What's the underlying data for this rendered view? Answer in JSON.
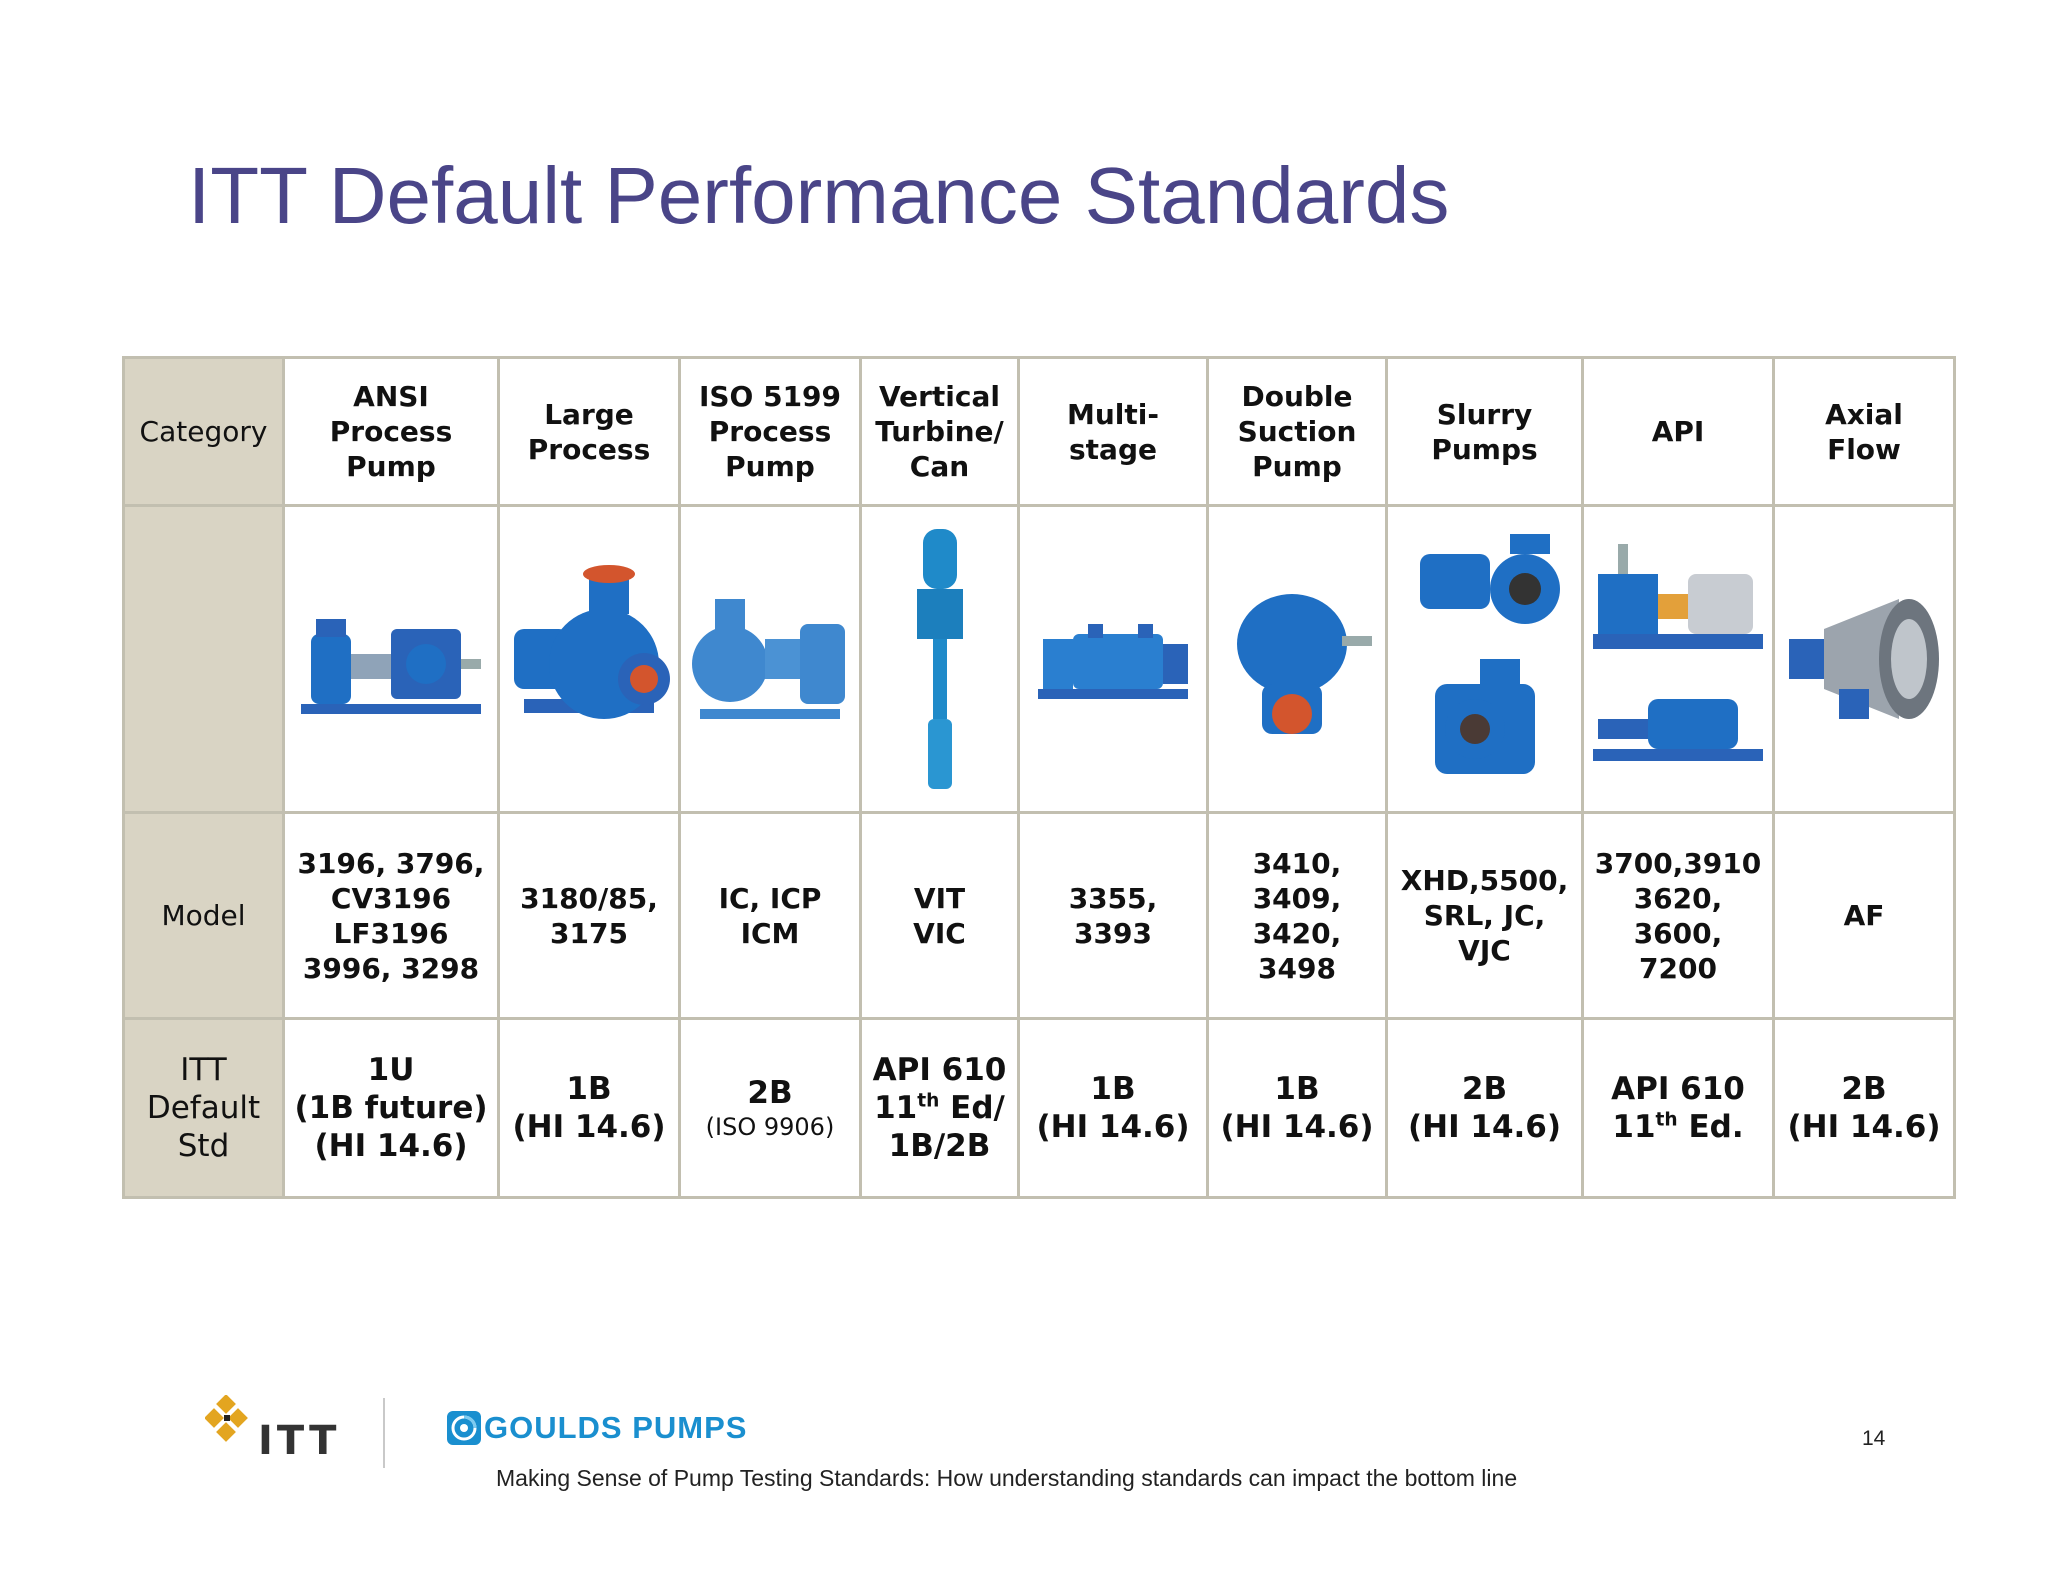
{
  "title": "ITT Default Performance Standards",
  "table": {
    "row_labels": {
      "category": "Category",
      "model": "Model",
      "std": [
        "ITT",
        "Default",
        "Std"
      ]
    },
    "columns": [
      {
        "header": [
          "ANSI Process",
          "Pump"
        ],
        "model": [
          "3196, 3796,",
          "CV3196",
          "LF3196",
          "3996, 3298"
        ],
        "std": [
          "1U",
          "(1B future)",
          "(HI 14.6)"
        ]
      },
      {
        "header": [
          "Large",
          "Process"
        ],
        "model": [
          "3180/85,",
          "3175"
        ],
        "std": [
          "1B",
          "(HI 14.6)"
        ]
      },
      {
        "header": [
          "ISO 5199",
          "Process",
          "Pump"
        ],
        "model": [
          "IC, ICP",
          "ICM"
        ],
        "std_main": "2B",
        "std_sub": "(ISO 9906)"
      },
      {
        "header": [
          "Vertical",
          "Turbine/",
          "Can"
        ],
        "model": [
          "VIT",
          "VIC"
        ],
        "std_api": {
          "l1": "API 610",
          "num": "11",
          "sup": "th",
          "suffix": " Ed/",
          "l3": "1B/2B"
        }
      },
      {
        "header": [
          "Multi-",
          "stage"
        ],
        "model": [
          "3355,",
          "3393"
        ],
        "std": [
          "1B",
          "(HI 14.6)"
        ]
      },
      {
        "header": [
          "Double",
          "Suction",
          "Pump"
        ],
        "model": [
          "3410,",
          "3409,",
          "3420,",
          "3498"
        ],
        "std": [
          "1B",
          "(HI 14.6)"
        ]
      },
      {
        "header": [
          "Slurry",
          "Pumps"
        ],
        "model": [
          "XHD,5500,",
          "SRL, JC,",
          "VJC"
        ],
        "std": [
          "2B",
          "(HI 14.6)"
        ]
      },
      {
        "header": [
          "API"
        ],
        "model": [
          "3700,3910",
          "3620,",
          "3600,",
          "7200"
        ],
        "std_api": {
          "l1": "API 610",
          "num": "11",
          "sup": "th",
          "suffix": " Ed."
        }
      },
      {
        "header": [
          "Axial",
          "Flow"
        ],
        "model": [
          "AF"
        ],
        "std": [
          "2B",
          "(HI 14.6)"
        ]
      }
    ]
  },
  "footer": {
    "itt_logo": "ITT",
    "goulds_logo": "GOULDS PUMPS",
    "tagline": "Making Sense of Pump Testing Standards: How understanding standards can impact the bottom line",
    "page_number": "14"
  },
  "colors": {
    "title": "#4a4588",
    "label_cell": "#d9d4c4",
    "border": "#c2bfb0",
    "pump_blue": "#1f6fc4",
    "goulds_blue": "#1a8fcf"
  }
}
